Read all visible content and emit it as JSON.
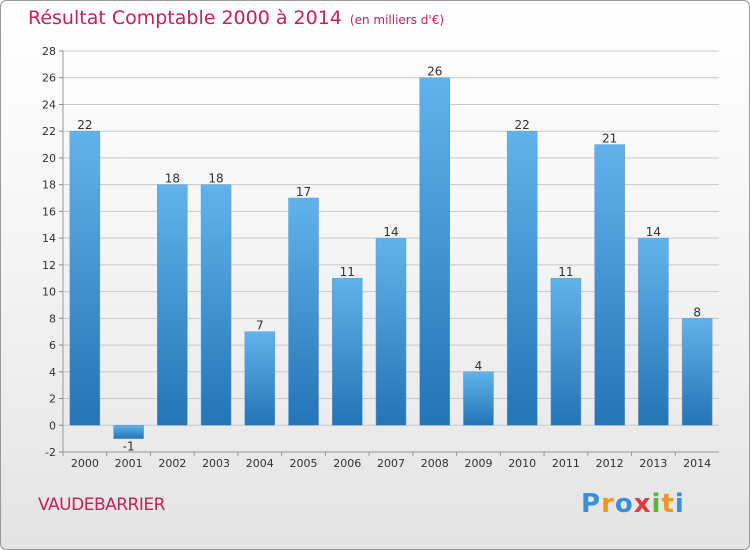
{
  "chart_data": {
    "type": "bar",
    "title": "Résultat Comptable 2000 à 2014",
    "unit_label": "(en milliers d'€)",
    "categories": [
      "2000",
      "2001",
      "2002",
      "2003",
      "2004",
      "2005",
      "2006",
      "2007",
      "2008",
      "2009",
      "2010",
      "2011",
      "2012",
      "2013",
      "2014"
    ],
    "values": [
      22,
      -1,
      18,
      18,
      7,
      17,
      11,
      14,
      26,
      4,
      22,
      11,
      21,
      14,
      8
    ],
    "value_labels": [
      "22",
      "-1",
      "18",
      "18",
      "7",
      "17",
      "11",
      "14",
      "26",
      "4",
      "22",
      "11",
      "21",
      "14",
      "8"
    ],
    "ylim": [
      -2,
      28
    ],
    "yticks": [
      -2,
      0,
      2,
      4,
      6,
      8,
      10,
      12,
      14,
      16,
      18,
      20,
      22,
      24,
      26,
      28
    ],
    "grid": true,
    "xlabel": "",
    "ylabel": ""
  },
  "footer": {
    "commune": "VAUDEBARRIER",
    "logo_letters": [
      "P",
      "r",
      "o",
      "x",
      "i",
      "t",
      "i"
    ]
  },
  "colors": {
    "title": "#c8205a",
    "bar_top": "#62b2ea",
    "bar_bottom": "#2474b6",
    "grid": "#c9c9c9",
    "logo": [
      "#3a8fd6",
      "#f7941d",
      "#3a8fd6",
      "#e23b3b",
      "#5fb23b",
      "#f7941d",
      "#3a8fd6"
    ]
  }
}
